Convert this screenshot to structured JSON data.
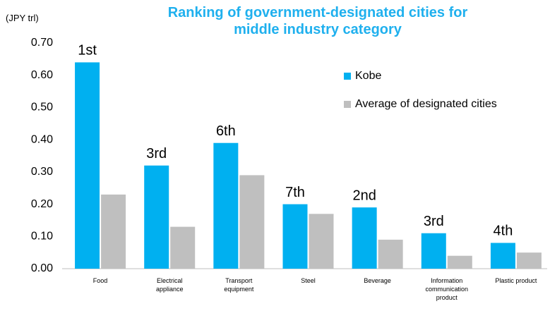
{
  "chart_data": {
    "type": "bar",
    "title": "Ranking of government-designated cities for middle industry category",
    "y_axis_label": "(JPY trl)",
    "categories": [
      "Food",
      "Electrical\nappliance",
      "Transport\nequipment",
      "Steel",
      "Beverage",
      "Information\ncommunication\nproduct",
      "Plastic product"
    ],
    "series": [
      {
        "name": "Kobe",
        "color": "#00b0f0",
        "values": [
          0.64,
          0.32,
          0.39,
          0.2,
          0.19,
          0.11,
          0.08
        ]
      },
      {
        "name": "Average of designated cities",
        "color": "#bfbfbf",
        "values": [
          0.23,
          0.13,
          0.29,
          0.17,
          0.09,
          0.04,
          0.05
        ]
      }
    ],
    "annotations": [
      "1st",
      "3rd",
      "6th",
      "7th",
      "2nd",
      "3rd",
      "4th"
    ],
    "ylim": [
      0,
      0.7
    ],
    "yticks": [
      {
        "value": 0,
        "label": "0.00"
      },
      {
        "value": 0.1,
        "label": "0.10"
      },
      {
        "value": 0.2,
        "label": "0.20"
      },
      {
        "value": 0.3,
        "label": "0.30"
      },
      {
        "value": 0.4,
        "label": "0.40"
      },
      {
        "value": 0.5,
        "label": "0.50"
      },
      {
        "value": 0.6,
        "label": "0.60"
      },
      {
        "value": 0.7,
        "label": "0.70"
      }
    ],
    "grid": false,
    "legend": "upper right"
  }
}
